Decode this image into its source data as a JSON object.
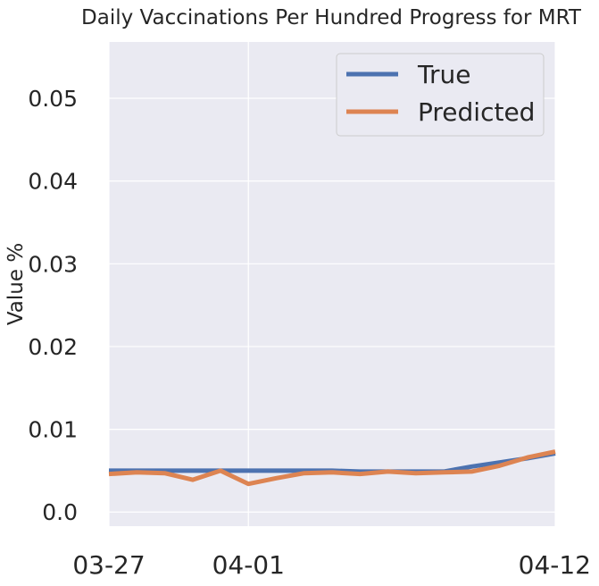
{
  "chart_data": {
    "type": "line",
    "title": "Daily Vaccinations Per Hundred Progress for MRT",
    "xlabel": "",
    "ylabel": "Value %",
    "x": [
      "2021-03-27",
      "2021-03-28",
      "2021-03-29",
      "2021-03-30",
      "2021-03-31",
      "2021-04-01",
      "2021-04-02",
      "2021-04-03",
      "2021-04-04",
      "2021-04-05",
      "2021-04-06",
      "2021-04-07",
      "2021-04-08",
      "2021-04-09",
      "2021-04-10",
      "2021-04-11",
      "2021-04-12"
    ],
    "xtick_labels": [
      "03-27",
      "04-01",
      "04-12"
    ],
    "ylim": [
      -0.0017,
      0.0568
    ],
    "yticks": [
      0.0,
      0.01,
      0.02,
      0.03,
      0.04,
      0.05
    ],
    "ytick_labels": [
      "0.0",
      "0.01",
      "0.02",
      "0.03",
      "0.04",
      "0.05"
    ],
    "grid": true,
    "legend_position": "top-right",
    "series": [
      {
        "name": "True",
        "color": "#4c72b0",
        "values": [
          0.005,
          0.005,
          0.005,
          0.005,
          0.005,
          0.005,
          0.005,
          0.005,
          0.005,
          0.0049,
          0.0049,
          0.0049,
          0.0049,
          0.0055,
          0.006,
          0.0065,
          0.0071
        ]
      },
      {
        "name": "Predicted",
        "color": "#dd8452",
        "values": [
          0.0046,
          0.0048,
          0.0047,
          0.0039,
          0.005,
          0.0034,
          0.0041,
          0.0047,
          0.0048,
          0.0046,
          0.0049,
          0.0047,
          0.0048,
          0.0049,
          0.0056,
          0.0066,
          0.0073
        ]
      }
    ]
  }
}
